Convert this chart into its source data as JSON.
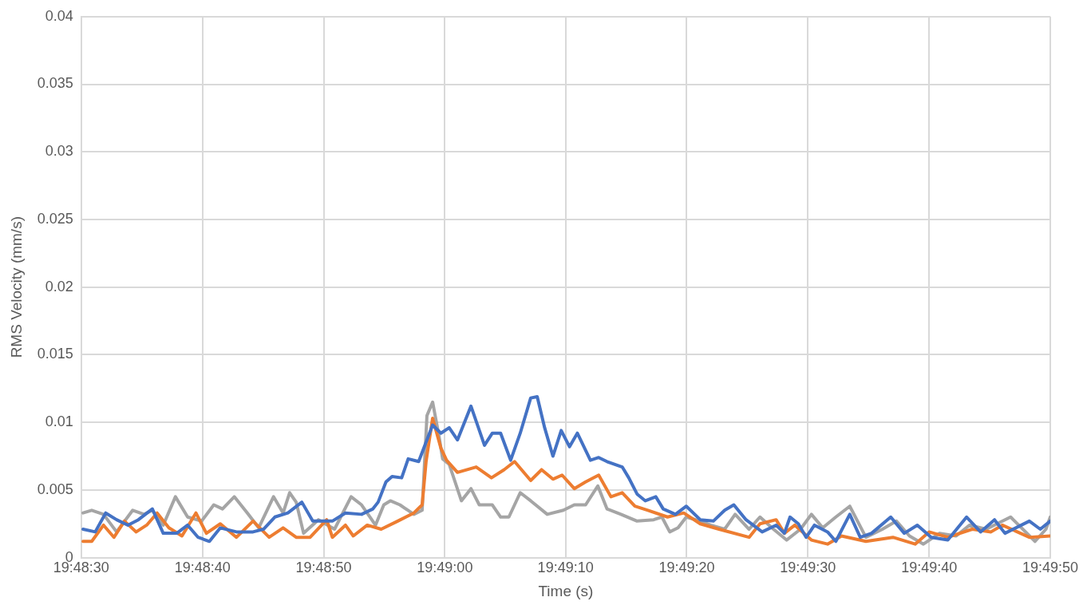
{
  "chart_data": {
    "type": "line",
    "xlabel": "Time (s)",
    "ylabel": "RMS Velocity (mm/s)",
    "xlim": [
      19.80833,
      19.83056
    ],
    "ylim": [
      0,
      0.04
    ],
    "xticks": [
      {
        "value": 19.80833,
        "label": "19:48:30"
      },
      {
        "value": 19.81111,
        "label": "19:48:40"
      },
      {
        "value": 19.81389,
        "label": "19:48:50"
      },
      {
        "value": 19.81667,
        "label": "19:49:00"
      },
      {
        "value": 19.81944,
        "label": "19:49:10"
      },
      {
        "value": 19.82222,
        "label": "19:49:20"
      },
      {
        "value": 19.825,
        "label": "19:49:30"
      },
      {
        "value": 19.82778,
        "label": "19:49:40"
      },
      {
        "value": 19.83056,
        "label": "19:49:50"
      }
    ],
    "yticks": [
      0,
      0.005,
      0.01,
      0.015,
      0.02,
      0.025,
      0.03,
      0.035,
      0.04
    ],
    "grid": true,
    "legend": false,
    "marker": "none",
    "line_style": "solid",
    "series": [
      {
        "color": "#4472c4",
        "x": [
          19.80837,
          19.80865,
          19.80889,
          19.80914,
          19.8094,
          19.80964,
          19.80996,
          19.81021,
          19.81052,
          19.81077,
          19.81101,
          19.81127,
          19.81152,
          19.81189,
          19.81227,
          19.81251,
          19.81277,
          19.81307,
          19.81339,
          19.81364,
          19.81409,
          19.81439,
          19.81476,
          19.81502,
          19.81514,
          19.81532,
          19.81546,
          19.81568,
          19.81583,
          19.81607,
          19.81639,
          19.81658,
          19.81677,
          19.81696,
          19.81727,
          19.81758,
          19.81776,
          19.81795,
          19.81818,
          19.8184,
          19.81864,
          19.81879,
          19.81896,
          19.81915,
          19.81934,
          19.81953,
          19.81971,
          19.82001,
          19.8202,
          19.82039,
          19.82074,
          19.82089,
          19.82108,
          19.82127,
          19.82151,
          19.82168,
          19.82196,
          19.82221,
          19.82253,
          19.82283,
          19.82309,
          19.8233,
          19.82358,
          19.82395,
          19.82427,
          19.82446,
          19.82459,
          19.82478,
          19.82496,
          19.82515,
          19.82545,
          19.82564,
          19.82596,
          19.8262,
          19.82646,
          19.8269,
          19.82721,
          19.82751,
          19.82783,
          19.82821,
          19.82864,
          19.82896,
          19.82928,
          19.82952,
          19.83008,
          19.83033,
          19.83056
        ],
        "values": [
          0.0021,
          0.0019,
          0.0033,
          0.0028,
          0.0024,
          0.0028,
          0.0036,
          0.0018,
          0.0018,
          0.0024,
          0.0015,
          0.0012,
          0.0022,
          0.0019,
          0.0019,
          0.0021,
          0.003,
          0.0033,
          0.0041,
          0.0027,
          0.0027,
          0.0033,
          0.0032,
          0.0036,
          0.0041,
          0.0056,
          0.006,
          0.0059,
          0.0073,
          0.0071,
          0.0098,
          0.0092,
          0.0096,
          0.0087,
          0.0112,
          0.0083,
          0.0092,
          0.0092,
          0.0072,
          0.0092,
          0.0118,
          0.0119,
          0.0096,
          0.0075,
          0.0094,
          0.0082,
          0.0092,
          0.0072,
          0.0074,
          0.0071,
          0.0067,
          0.0059,
          0.0047,
          0.0042,
          0.0045,
          0.0036,
          0.0032,
          0.0038,
          0.0028,
          0.0027,
          0.0035,
          0.0039,
          0.0028,
          0.0019,
          0.0024,
          0.0018,
          0.003,
          0.0025,
          0.0015,
          0.0024,
          0.0019,
          0.0012,
          0.0032,
          0.0015,
          0.0018,
          0.003,
          0.0018,
          0.0024,
          0.0015,
          0.0013,
          0.003,
          0.0019,
          0.0028,
          0.0018,
          0.0027,
          0.0021,
          0.0027
        ]
      },
      {
        "color": "#ed7d31",
        "x": [
          19.80837,
          19.80857,
          19.80884,
          19.80908,
          19.80932,
          19.80959,
          19.80983,
          19.81007,
          19.81034,
          19.81064,
          19.81096,
          19.8112,
          19.81152,
          19.81189,
          19.81227,
          19.81264,
          19.81296,
          19.81326,
          19.81358,
          19.81396,
          19.81409,
          19.81439,
          19.81457,
          19.81489,
          19.81521,
          19.81559,
          19.81596,
          19.81615,
          19.81624,
          19.81639,
          19.81658,
          19.81671,
          19.81696,
          19.81739,
          19.81774,
          19.81803,
          19.81827,
          19.81864,
          19.81889,
          19.81915,
          19.81936,
          19.81964,
          19.8199,
          19.8202,
          19.82048,
          19.82074,
          19.82103,
          19.82133,
          19.82178,
          19.82215,
          19.82253,
          19.82296,
          19.82365,
          19.8239,
          19.82427,
          19.82446,
          19.8247,
          19.82508,
          19.82545,
          19.82577,
          19.82633,
          19.82695,
          19.82746,
          19.82778,
          19.82821,
          19.82877,
          19.8292,
          19.82946,
          19.83008,
          19.83056
        ],
        "values": [
          0.0012,
          0.0012,
          0.0024,
          0.0015,
          0.0027,
          0.0019,
          0.0024,
          0.0033,
          0.0022,
          0.0016,
          0.0033,
          0.0018,
          0.0025,
          0.0015,
          0.0027,
          0.0015,
          0.0022,
          0.0015,
          0.0015,
          0.0028,
          0.0015,
          0.0024,
          0.0016,
          0.0024,
          0.0021,
          0.0027,
          0.0033,
          0.0039,
          0.0071,
          0.0103,
          0.0081,
          0.0072,
          0.0063,
          0.0067,
          0.0059,
          0.0065,
          0.0071,
          0.0057,
          0.0065,
          0.0058,
          0.0061,
          0.0051,
          0.0056,
          0.0061,
          0.0045,
          0.0048,
          0.0038,
          0.0035,
          0.003,
          0.0033,
          0.0025,
          0.0021,
          0.0015,
          0.0025,
          0.0028,
          0.0018,
          0.0024,
          0.0013,
          0.001,
          0.0016,
          0.0012,
          0.0015,
          0.001,
          0.0019,
          0.0015,
          0.0021,
          0.0019,
          0.0024,
          0.0015,
          0.0016
        ]
      },
      {
        "color": "#a5a5a5",
        "x": [
          19.80837,
          19.80857,
          19.80884,
          19.80914,
          19.80951,
          19.80977,
          19.80996,
          19.81021,
          19.81049,
          19.81077,
          19.81109,
          19.81137,
          19.81157,
          19.81184,
          19.81214,
          19.8124,
          19.81274,
          19.81296,
          19.81311,
          19.81326,
          19.81343,
          19.81377,
          19.81414,
          19.81452,
          19.81476,
          19.81508,
          19.81527,
          19.81542,
          19.81564,
          19.81596,
          19.81615,
          19.81626,
          19.81639,
          19.81653,
          19.81662,
          19.81677,
          19.81705,
          19.81727,
          19.81746,
          19.81776,
          19.81795,
          19.81814,
          19.8184,
          19.81864,
          19.81902,
          19.81939,
          19.81964,
          19.8199,
          19.82018,
          19.82039,
          19.82071,
          19.82108,
          19.82146,
          19.82165,
          19.82183,
          19.82202,
          19.82221,
          19.82253,
          19.82277,
          19.82309,
          19.82333,
          19.82365,
          19.8239,
          19.82421,
          19.82451,
          19.82483,
          19.82508,
          19.82534,
          19.82564,
          19.82596,
          19.82633,
          19.82671,
          19.82703,
          19.82733,
          19.82765,
          19.82802,
          19.8284,
          19.82871,
          19.82909,
          19.82965,
          19.83021,
          19.83046,
          19.83056
        ],
        "values": [
          0.0033,
          0.0035,
          0.0032,
          0.0019,
          0.0035,
          0.0032,
          0.0035,
          0.0024,
          0.0045,
          0.003,
          0.0027,
          0.0039,
          0.0036,
          0.0045,
          0.0033,
          0.0022,
          0.0045,
          0.0033,
          0.0048,
          0.0041,
          0.0018,
          0.0028,
          0.0021,
          0.0045,
          0.0039,
          0.0024,
          0.0039,
          0.0042,
          0.0039,
          0.0032,
          0.0035,
          0.0105,
          0.0115,
          0.0091,
          0.0073,
          0.0069,
          0.0042,
          0.0051,
          0.0039,
          0.0039,
          0.003,
          0.003,
          0.0048,
          0.0042,
          0.0032,
          0.0035,
          0.0039,
          0.0039,
          0.0053,
          0.0036,
          0.0032,
          0.0027,
          0.0028,
          0.003,
          0.0019,
          0.0022,
          0.003,
          0.0027,
          0.0024,
          0.0021,
          0.0032,
          0.0021,
          0.003,
          0.0021,
          0.0013,
          0.0021,
          0.0032,
          0.0022,
          0.003,
          0.0038,
          0.0015,
          0.0021,
          0.0027,
          0.0016,
          0.001,
          0.0018,
          0.0016,
          0.0024,
          0.0021,
          0.003,
          0.0012,
          0.0021,
          0.003
        ]
      }
    ]
  }
}
